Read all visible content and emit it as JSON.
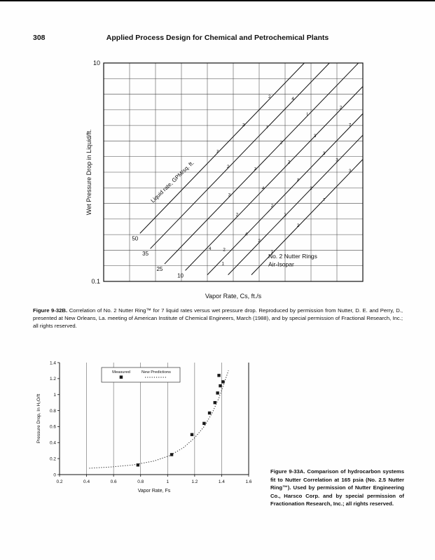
{
  "page": {
    "number": "308",
    "running_title": "Applied Process Design for Chemical and Petrochemical Plants"
  },
  "figure1": {
    "caption_label": "Figure 9-32B.",
    "caption_text": "Correlation of No. 2 Nutter Ring™ for 7 liquid rates versus wet pressure drop. Reproduced by permission from Nutter, D. E. and Perry, D., presented at New Orleans, La. meeting of American Institute of Chemical Engineers, March (1988), and by special permission of Fractional Research, Inc.; all rights reserved."
  },
  "figure2": {
    "caption_label": "Figure 9-33A.",
    "caption_text": "Comparison of hydrocarbon systems fit to Nutter Correlation at 165 psia (No. 2.5 Nutter Ring™). Used by permission of Nutter Engineering Co., Harsco Corp. and by special permission of Fractionation Research, Inc.; all rights reserved."
  },
  "chart_data": [
    {
      "id": "fig-9-32b",
      "type": "line",
      "scale": "log-log",
      "xlabel": "Vapor Rate, Cs, ft./s",
      "ylabel": "Wet Pressure Drop in Liquid/ft.",
      "ylim": [
        0.1,
        10
      ],
      "y_ticks": [
        {
          "label": "10",
          "frac": 1
        },
        {
          "label": "0.1",
          "frac": 0
        }
      ],
      "h_gridlines": 13,
      "v_gridlines": 9,
      "diagonal_label": "Liquid rate, GPM/sq. ft.",
      "annotation": [
        "No. 2 Nutter Rings",
        "Air-Isopar"
      ],
      "slope": 1.23,
      "liquid_rate_lines": [
        {
          "label": "50",
          "sx": 0.14,
          "sy": 0.22
        },
        {
          "label": "35",
          "sx": 0.18,
          "sy": 0.15
        },
        {
          "label": "25",
          "sx": 0.235,
          "sy": 0.08
        },
        {
          "label": "10",
          "sx": 0.315,
          "sy": 0.05
        },
        {
          "label": "",
          "sx": 0.4,
          "sy": 0.03
        },
        {
          "label": "",
          "sx": 0.48,
          "sy": 0.03
        },
        {
          "label": "",
          "sx": 0.57,
          "sy": 0.03
        }
      ],
      "data_markers": [
        {
          "x": 0.44,
          "y": 0.59,
          "g": "z"
        },
        {
          "x": 0.54,
          "y": 0.71,
          "g": "3"
        },
        {
          "x": 0.64,
          "y": 0.84,
          "g": "2"
        },
        {
          "x": 0.48,
          "y": 0.52,
          "g": "2"
        },
        {
          "x": 0.63,
          "y": 0.7,
          "g": "I"
        },
        {
          "x": 0.73,
          "y": 0.83,
          "g": "4"
        },
        {
          "x": 0.485,
          "y": 0.39,
          "g": "3"
        },
        {
          "x": 0.585,
          "y": 0.51,
          "g": "z"
        },
        {
          "x": 0.685,
          "y": 0.63,
          "g": "2"
        },
        {
          "x": 0.785,
          "y": 0.76,
          "g": "I"
        },
        {
          "x": 0.515,
          "y": 0.3,
          "g": "2"
        },
        {
          "x": 0.615,
          "y": 0.42,
          "g": "4"
        },
        {
          "x": 0.715,
          "y": 0.54,
          "g": "2"
        },
        {
          "x": 0.815,
          "y": 0.66,
          "g": "3"
        },
        {
          "x": 0.915,
          "y": 0.79,
          "g": "2"
        },
        {
          "x": 0.55,
          "y": 0.21,
          "g": "4"
        },
        {
          "x": 0.65,
          "y": 0.34,
          "g": "2"
        },
        {
          "x": 0.75,
          "y": 0.46,
          "g": "z"
        },
        {
          "x": 0.85,
          "y": 0.58,
          "g": "3"
        },
        {
          "x": 0.95,
          "y": 0.71,
          "g": "7"
        },
        {
          "x": 0.6,
          "y": 0.18,
          "g": "2"
        },
        {
          "x": 0.7,
          "y": 0.3,
          "g": "1"
        },
        {
          "x": 0.8,
          "y": 0.42,
          "g": "2"
        },
        {
          "x": 0.9,
          "y": 0.55,
          "g": "3"
        },
        {
          "x": 0.65,
          "y": 0.13,
          "g": "1"
        },
        {
          "x": 0.75,
          "y": 0.25,
          "g": "2"
        },
        {
          "x": 0.85,
          "y": 0.37,
          "g": "z"
        },
        {
          "x": 0.95,
          "y": 0.5,
          "g": "3"
        },
        {
          "x": 0.41,
          "y": 0.145,
          "g": "4"
        },
        {
          "x": 0.465,
          "y": 0.14,
          "g": "2"
        },
        {
          "x": 0.46,
          "y": 0.075,
          "g": "1"
        }
      ]
    },
    {
      "id": "fig-9-33a",
      "type": "scatter",
      "xlabel": "Vapor Rate, Fs",
      "ylabel": "Pressure Drop, In H₂O/ft",
      "xlim": [
        0.2,
        1.6
      ],
      "ylim": [
        0,
        1.4
      ],
      "x_ticks": [
        "0.2",
        "0.4",
        "0.6",
        "0.8",
        "1",
        "1.2",
        "1.4",
        "1.6"
      ],
      "y_ticks": [
        "0",
        "0.2",
        "0.4",
        "0.6",
        "0.8",
        "1",
        "1.2",
        "1.4"
      ],
      "grid_x_values": [
        0.4,
        0.6,
        0.8,
        1,
        1.2,
        1.4
      ],
      "legend": [
        {
          "label": "Measured",
          "marker": "square"
        },
        {
          "label": "New Predictions",
          "marker": "dotted-line"
        }
      ],
      "series": [
        {
          "name": "Measured",
          "type": "scatter",
          "points": [
            [
              0.78,
              0.12
            ],
            [
              1.03,
              0.25
            ],
            [
              1.18,
              0.5
            ],
            [
              1.27,
              0.64
            ],
            [
              1.31,
              0.77
            ],
            [
              1.35,
              0.9
            ],
            [
              1.37,
              1.02
            ],
            [
              1.39,
              1.11
            ],
            [
              1.41,
              1.16
            ],
            [
              1.38,
              1.24
            ]
          ]
        },
        {
          "name": "New Predictions",
          "type": "dotted-line",
          "points": [
            [
              0.42,
              0.08
            ],
            [
              0.58,
              0.095
            ],
            [
              0.74,
              0.12
            ],
            [
              0.9,
              0.17
            ],
            [
              1.02,
              0.24
            ],
            [
              1.12,
              0.34
            ],
            [
              1.2,
              0.46
            ],
            [
              1.27,
              0.6
            ],
            [
              1.33,
              0.77
            ],
            [
              1.38,
              0.96
            ],
            [
              1.42,
              1.15
            ],
            [
              1.45,
              1.3
            ]
          ]
        }
      ]
    }
  ]
}
